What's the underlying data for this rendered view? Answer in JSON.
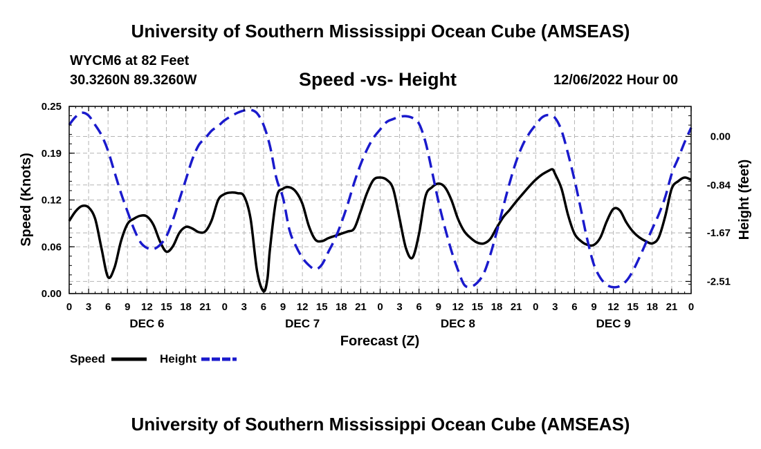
{
  "header": {
    "title": "University of Southern Mississippi Ocean Cube (AMSEAS)",
    "station": "WYCM6 at 82 Feet",
    "coordinates": "30.3260N  89.3260W",
    "datetime": "12/06/2022 Hour 00"
  },
  "footer": {
    "title": "University of Southern Mississippi Ocean Cube (AMSEAS)"
  },
  "chart_data": {
    "type": "line",
    "title": "Speed -vs- Height",
    "xlabel": "Forecast (Z)",
    "ylabel_left": "Speed (Knots)",
    "ylabel_right": "Height (feet)",
    "x_range": [
      0,
      96
    ],
    "y_left_range": [
      0,
      0.25
    ],
    "y_right_range": [
      -2.72,
      0.52
    ],
    "grid": true,
    "x_tick_values": [
      0,
      3,
      6,
      9,
      12,
      15,
      18,
      21,
      24,
      27,
      30,
      33,
      36,
      39,
      42,
      45,
      48,
      51,
      54,
      57,
      60,
      63,
      66,
      69,
      72,
      75,
      78,
      81,
      84,
      87,
      90,
      93,
      96
    ],
    "x_tick_labels": [
      "0",
      "3",
      "6",
      "9",
      "12",
      "15",
      "18",
      "21",
      "0",
      "3",
      "6",
      "9",
      "12",
      "15",
      "18",
      "21",
      "0",
      "3",
      "6",
      "9",
      "12",
      "15",
      "18",
      "21",
      "0",
      "3",
      "6",
      "9",
      "12",
      "15",
      "18",
      "21",
      "0"
    ],
    "day_labels": [
      {
        "label": "DEC 6",
        "x": 12
      },
      {
        "label": "DEC 7",
        "x": 36
      },
      {
        "label": "DEC 8",
        "x": 60
      },
      {
        "label": "DEC 9",
        "x": 84
      }
    ],
    "y_left_ticks": [
      {
        "value": 0.0,
        "label": "0.00"
      },
      {
        "value": 0.0625,
        "label": "0.06"
      },
      {
        "value": 0.125,
        "label": "0.12"
      },
      {
        "value": 0.1875,
        "label": "0.19"
      },
      {
        "value": 0.25,
        "label": "0.25"
      }
    ],
    "y_right_ticks": [
      {
        "value": 0.0,
        "label": "0.00"
      },
      {
        "value": -0.84,
        "label": "-0.84"
      },
      {
        "value": -1.67,
        "label": "-1.67"
      },
      {
        "value": -2.51,
        "label": "-2.51"
      }
    ],
    "legend": [
      {
        "name": "Speed",
        "color": "#000000",
        "style": "solid"
      },
      {
        "name": "Height",
        "color": "#1a1acc",
        "style": "dashed"
      }
    ],
    "series": [
      {
        "name": "Speed",
        "axis": "left",
        "color": "#000000",
        "points": [
          [
            0,
            0.097
          ],
          [
            1,
            0.11
          ],
          [
            2,
            0.117
          ],
          [
            3,
            0.115
          ],
          [
            4,
            0.1
          ],
          [
            5,
            0.06
          ],
          [
            6,
            0.022
          ],
          [
            7,
            0.035
          ],
          [
            8,
            0.07
          ],
          [
            9,
            0.093
          ],
          [
            10,
            0.1
          ],
          [
            11,
            0.104
          ],
          [
            12,
            0.103
          ],
          [
            13,
            0.092
          ],
          [
            14,
            0.07
          ],
          [
            15,
            0.056
          ],
          [
            16,
            0.063
          ],
          [
            17,
            0.081
          ],
          [
            18,
            0.089
          ],
          [
            19,
            0.087
          ],
          [
            20,
            0.082
          ],
          [
            21,
            0.083
          ],
          [
            22,
            0.098
          ],
          [
            23,
            0.125
          ],
          [
            24,
            0.133
          ],
          [
            25,
            0.135
          ],
          [
            26,
            0.134
          ],
          [
            27,
            0.13
          ],
          [
            28,
            0.1
          ],
          [
            29,
            0.03
          ],
          [
            30,
            0.003
          ],
          [
            30.6,
            0.02
          ],
          [
            31,
            0.06
          ],
          [
            32,
            0.128
          ],
          [
            33,
            0.14
          ],
          [
            34,
            0.142
          ],
          [
            35,
            0.136
          ],
          [
            36,
            0.12
          ],
          [
            37,
            0.09
          ],
          [
            38,
            0.072
          ],
          [
            39,
            0.07
          ],
          [
            40,
            0.074
          ],
          [
            41,
            0.077
          ],
          [
            42,
            0.08
          ],
          [
            43,
            0.083
          ],
          [
            44,
            0.087
          ],
          [
            45,
            0.11
          ],
          [
            46,
            0.135
          ],
          [
            47,
            0.152
          ],
          [
            48,
            0.155
          ],
          [
            49,
            0.152
          ],
          [
            50,
            0.14
          ],
          [
            51,
            0.1
          ],
          [
            52,
            0.06
          ],
          [
            53,
            0.048
          ],
          [
            54,
            0.08
          ],
          [
            55,
            0.13
          ],
          [
            56,
            0.142
          ],
          [
            57,
            0.147
          ],
          [
            58,
            0.142
          ],
          [
            59,
            0.125
          ],
          [
            60,
            0.1
          ],
          [
            61,
            0.083
          ],
          [
            62,
            0.074
          ],
          [
            63,
            0.068
          ],
          [
            64,
            0.067
          ],
          [
            65,
            0.073
          ],
          [
            66,
            0.088
          ],
          [
            67,
            0.102
          ],
          [
            68,
            0.112
          ],
          [
            69,
            0.123
          ],
          [
            70,
            0.133
          ],
          [
            71,
            0.143
          ],
          [
            72,
            0.152
          ],
          [
            73,
            0.159
          ],
          [
            74,
            0.164
          ],
          [
            74.6,
            0.166
          ],
          [
            75,
            0.16
          ],
          [
            76,
            0.14
          ],
          [
            77,
            0.105
          ],
          [
            78,
            0.08
          ],
          [
            79,
            0.07
          ],
          [
            80,
            0.065
          ],
          [
            81,
            0.065
          ],
          [
            82,
            0.075
          ],
          [
            83,
            0.097
          ],
          [
            84,
            0.113
          ],
          [
            85,
            0.111
          ],
          [
            86,
            0.095
          ],
          [
            87,
            0.083
          ],
          [
            88,
            0.075
          ],
          [
            89,
            0.07
          ],
          [
            90,
            0.067
          ],
          [
            91,
            0.075
          ],
          [
            92,
            0.103
          ],
          [
            93,
            0.14
          ],
          [
            94,
            0.15
          ],
          [
            95,
            0.155
          ],
          [
            96,
            0.152
          ]
        ]
      },
      {
        "name": "Height",
        "axis": "right",
        "color": "#1a1acc",
        "points": [
          [
            0,
            0.2
          ],
          [
            1,
            0.34
          ],
          [
            2,
            0.41
          ],
          [
            3,
            0.36
          ],
          [
            4,
            0.2
          ],
          [
            5,
            0.02
          ],
          [
            6,
            -0.25
          ],
          [
            7,
            -0.62
          ],
          [
            8,
            -0.98
          ],
          [
            9,
            -1.3
          ],
          [
            10,
            -1.6
          ],
          [
            11,
            -1.83
          ],
          [
            12,
            -1.93
          ],
          [
            13,
            -1.95
          ],
          [
            14,
            -1.88
          ],
          [
            15,
            -1.73
          ],
          [
            16,
            -1.45
          ],
          [
            17,
            -1.1
          ],
          [
            18,
            -0.75
          ],
          [
            19,
            -0.4
          ],
          [
            20,
            -0.15
          ],
          [
            21,
            -0.03
          ],
          [
            22,
            0.1
          ],
          [
            23,
            0.18
          ],
          [
            24,
            0.28
          ],
          [
            25,
            0.35
          ],
          [
            26,
            0.41
          ],
          [
            27,
            0.45
          ],
          [
            28,
            0.46
          ],
          [
            29,
            0.4
          ],
          [
            30,
            0.2
          ],
          [
            31,
            -0.17
          ],
          [
            32,
            -0.73
          ],
          [
            33,
            -1.06
          ],
          [
            34,
            -1.62
          ],
          [
            35,
            -1.9
          ],
          [
            36,
            -2.1
          ],
          [
            37,
            -2.23
          ],
          [
            38,
            -2.3
          ],
          [
            39,
            -2.22
          ],
          [
            40,
            -2.0
          ],
          [
            41,
            -1.78
          ],
          [
            42,
            -1.5
          ],
          [
            43,
            -1.17
          ],
          [
            44,
            -0.8
          ],
          [
            45,
            -0.48
          ],
          [
            46,
            -0.22
          ],
          [
            47,
            -0.02
          ],
          [
            48,
            0.12
          ],
          [
            49,
            0.25
          ],
          [
            50,
            0.3
          ],
          [
            51,
            0.34
          ],
          [
            52,
            0.35
          ],
          [
            53,
            0.32
          ],
          [
            54,
            0.22
          ],
          [
            55,
            -0.1
          ],
          [
            56,
            -0.6
          ],
          [
            57,
            -1.13
          ],
          [
            58,
            -1.58
          ],
          [
            59,
            -1.98
          ],
          [
            60,
            -2.31
          ],
          [
            61,
            -2.57
          ],
          [
            62,
            -2.6
          ],
          [
            63,
            -2.53
          ],
          [
            64,
            -2.37
          ],
          [
            65,
            -2.05
          ],
          [
            66,
            -1.65
          ],
          [
            67,
            -1.22
          ],
          [
            68,
            -0.8
          ],
          [
            69,
            -0.43
          ],
          [
            70,
            -0.15
          ],
          [
            71,
            0.05
          ],
          [
            72,
            0.2
          ],
          [
            73,
            0.33
          ],
          [
            74,
            0.37
          ],
          [
            75,
            0.32
          ],
          [
            76,
            0.1
          ],
          [
            77,
            -0.3
          ],
          [
            78,
            -0.75
          ],
          [
            79,
            -1.27
          ],
          [
            80,
            -1.8
          ],
          [
            81,
            -2.22
          ],
          [
            82,
            -2.45
          ],
          [
            83,
            -2.57
          ],
          [
            84,
            -2.61
          ],
          [
            85,
            -2.59
          ],
          [
            86,
            -2.5
          ],
          [
            87,
            -2.33
          ],
          [
            88,
            -2.1
          ],
          [
            89,
            -1.85
          ],
          [
            90,
            -1.6
          ],
          [
            91,
            -1.35
          ],
          [
            92,
            -1.05
          ],
          [
            93,
            -0.65
          ],
          [
            94,
            -0.38
          ],
          [
            95,
            -0.1
          ],
          [
            96,
            0.15
          ]
        ]
      }
    ]
  }
}
